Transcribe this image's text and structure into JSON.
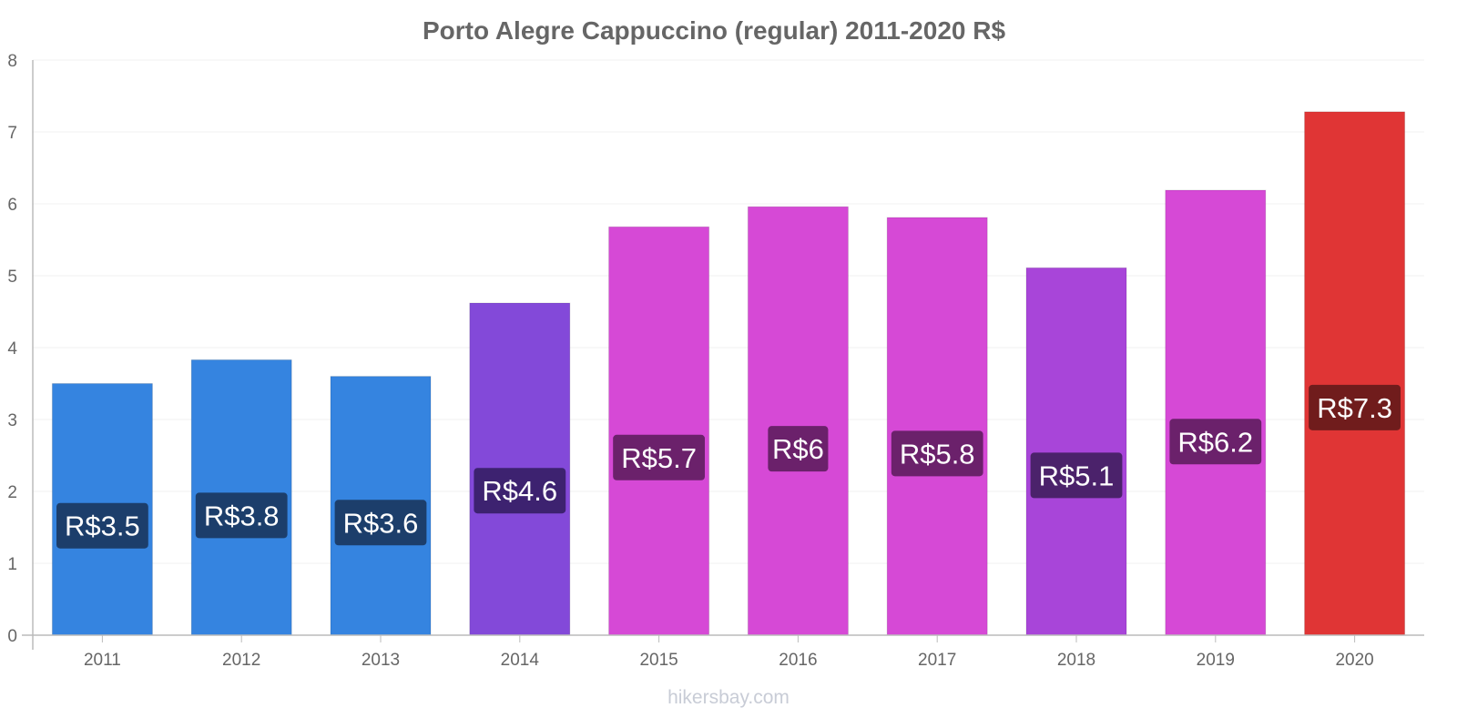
{
  "chart_data": {
    "type": "bar",
    "title": "Porto Alegre Cappuccino (regular) 2011-2020 R$",
    "categories": [
      "2011",
      "2012",
      "2013",
      "2014",
      "2015",
      "2016",
      "2017",
      "2018",
      "2019",
      "2020"
    ],
    "values": [
      3.5,
      3.83,
      3.6,
      4.62,
      5.68,
      5.96,
      5.81,
      5.11,
      6.19,
      7.28
    ],
    "data_labels": [
      "R$3.5",
      "R$3.8",
      "R$3.6",
      "R$4.6",
      "R$5.7",
      "R$6",
      "R$5.8",
      "R$5.1",
      "R$6.2",
      "R$7.3"
    ],
    "bar_colors": [
      "#3584e0",
      "#3584e0",
      "#3584e0",
      "#8349d9",
      "#d649d6",
      "#d649d6",
      "#d649d6",
      "#a845d9",
      "#d649d6",
      "#e03535"
    ],
    "label_colors": [
      "#1c3e6b",
      "#1c3e6b",
      "#1c3e6b",
      "#3d2270",
      "#6b216b",
      "#6b216b",
      "#6b216b",
      "#4b226b",
      "#6b216b",
      "#701c1c"
    ],
    "y_ticks": [
      "0",
      "1",
      "2",
      "3",
      "4",
      "5",
      "6",
      "7",
      "8"
    ],
    "ylim": [
      0,
      8
    ],
    "xlabel": "",
    "ylabel": "",
    "grid": true
  },
  "watermark": "hikersbay.com"
}
